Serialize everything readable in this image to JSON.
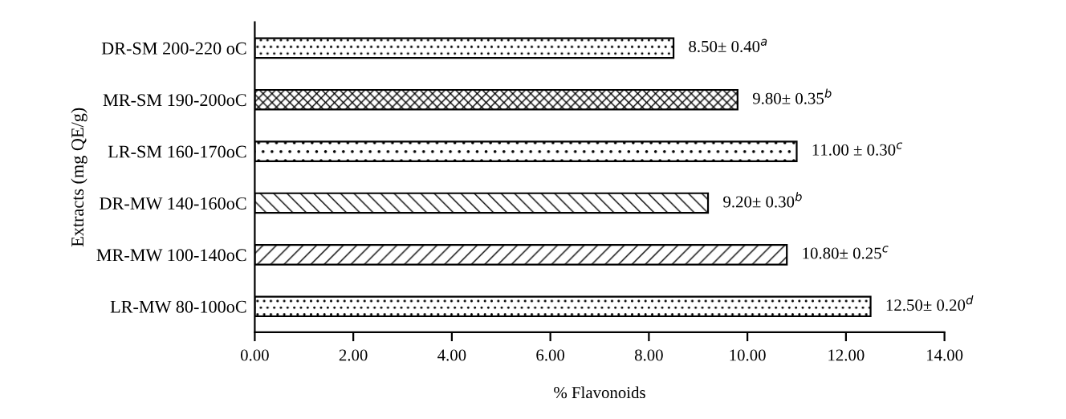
{
  "chart_data": {
    "type": "bar",
    "orientation": "horizontal",
    "xlabel": "% Flavonoids",
    "ylabel": "Extracts (mg QE/g)",
    "categories": [
      "DR-SM 200-220 oC",
      "MR-SM 190-200oC",
      "LR-SM 160-170oC",
      "DR-MW 140-160oC",
      "MR-MW 100-140oC",
      "LR-MW 80-100oC"
    ],
    "values": [
      8.5,
      9.8,
      11.0,
      9.2,
      10.8,
      12.5
    ],
    "value_labels": [
      "8.50± 0.40$^{a}$",
      "9.80± 0.35$^{b}$",
      "11.00 ± 0.30$^{c}$",
      "9.20± 0.30$^{b}$",
      "10.80± 0.25$^{c}$",
      "12.50± 0.20$^{d}$"
    ],
    "color": "#000000",
    "xlim": [
      0,
      14
    ],
    "xticks": [
      {
        "value": 0,
        "label": "0.00"
      },
      {
        "value": 2,
        "label": "2.00"
      },
      {
        "value": 4,
        "label": "4.00"
      },
      {
        "value": 6,
        "label": "6.00"
      },
      {
        "value": 8,
        "label": "8.00"
      },
      {
        "value": 10,
        "label": "10.00"
      },
      {
        "value": 12,
        "label": "12.00"
      },
      {
        "value": 14,
        "label": "14.00"
      }
    ],
    "grid": false,
    "legend": false
  }
}
